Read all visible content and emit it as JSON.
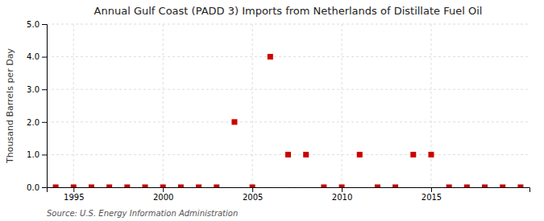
{
  "chart_data": {
    "type": "scatter",
    "title": "Annual Gulf Coast (PADD 3) Imports from Netherlands of Distillate Fuel Oil",
    "ylabel": "Thousand Barrels per Day",
    "annotations": [
      "Source: U.S. Energy Information Administration"
    ],
    "x": [
      1994,
      1995,
      1996,
      1997,
      1998,
      1999,
      2000,
      2001,
      2002,
      2003,
      2004,
      2005,
      2006,
      2007,
      2008,
      2009,
      2010,
      2011,
      2012,
      2013,
      2014,
      2015,
      2016,
      2017,
      2018,
      2019,
      2020
    ],
    "values": [
      0.0,
      0.0,
      0.0,
      0.0,
      0.0,
      0.0,
      0.0,
      0.0,
      0.0,
      0.0,
      2.0,
      0.0,
      4.0,
      1.0,
      1.0,
      0.0,
      0.0,
      1.0,
      0.0,
      0.0,
      1.0,
      1.0,
      0.0,
      0.0,
      0.0,
      0.0,
      0.0
    ],
    "color": "#cc0000",
    "marker": "square",
    "xlim": [
      1993.5,
      2020.5
    ],
    "xticks": [
      1995,
      2000,
      2005,
      2010,
      2015
    ],
    "ylim": [
      0.0,
      5.0
    ],
    "yticks": [
      {
        "value": 0.0,
        "label": "0.0"
      },
      {
        "value": 1.0,
        "label": "1.0"
      },
      {
        "value": 2.0,
        "label": "2.0"
      },
      {
        "value": 3.0,
        "label": "3.0"
      },
      {
        "value": 4.0,
        "label": "4.0"
      },
      {
        "value": 5.0,
        "label": "5.0"
      }
    ],
    "grid": true
  }
}
